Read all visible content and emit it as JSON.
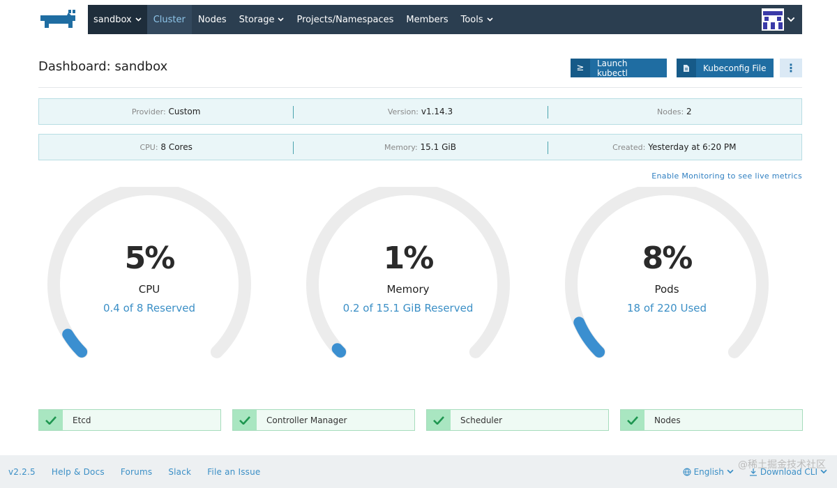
{
  "header": {
    "cluster_selector": "sandbox",
    "nav": [
      {
        "label": "Cluster",
        "active": true,
        "dropdown": false
      },
      {
        "label": "Nodes",
        "active": false,
        "dropdown": false
      },
      {
        "label": "Storage",
        "active": false,
        "dropdown": true
      },
      {
        "label": "Projects/Namespaces",
        "active": false,
        "dropdown": false
      },
      {
        "label": "Members",
        "active": false,
        "dropdown": false
      },
      {
        "label": "Tools",
        "active": false,
        "dropdown": true
      }
    ],
    "logo_icon": "rancher-cow-icon",
    "avatar_icon": "user-avatar-icon"
  },
  "page": {
    "title": "Dashboard: sandbox",
    "launch_kubectl": "Launch kubectl",
    "kubeconfig_file": "Kubeconfig File",
    "more_icon": "vertical-ellipsis-icon"
  },
  "info": {
    "row1": [
      {
        "key": "Provider:",
        "value": "Custom"
      },
      {
        "key": "Version:",
        "value": "v1.14.3"
      },
      {
        "key": "Nodes:",
        "value": "2"
      }
    ],
    "row2": [
      {
        "key": "CPU:",
        "value": "8 Cores"
      },
      {
        "key": "Memory:",
        "value": "15.1 GiB"
      },
      {
        "key": "Created:",
        "value": "Yesterday at 6:20 PM"
      }
    ]
  },
  "monitoring_link": "Enable Monitoring to see live metrics",
  "gauges": [
    {
      "pct_text": "5%",
      "fraction": 0.05,
      "label": "CPU",
      "sub": "0.4 of 8 Reserved"
    },
    {
      "pct_text": "1%",
      "fraction": 0.01,
      "label": "Memory",
      "sub": "0.2 of 15.1 GiB Reserved"
    },
    {
      "pct_text": "8%",
      "fraction": 0.08,
      "label": "Pods",
      "sub": "18 of 220 Used"
    }
  ],
  "components": [
    {
      "name": "Etcd"
    },
    {
      "name": "Controller Manager"
    },
    {
      "name": "Scheduler"
    },
    {
      "name": "Nodes"
    }
  ],
  "footer": {
    "version": "v2.2.5",
    "links": [
      "Help & Docs",
      "Forums",
      "Slack",
      "File an Issue"
    ],
    "language": "English",
    "download": "Download CLI",
    "watermark": "@稀土掘金技术社区"
  },
  "colors": {
    "nav_bg": "#2b3e50",
    "accent": "#1f6da2",
    "gauge_fill": "#3b8fd0",
    "gauge_track": "#ececec",
    "ok_green": "#27a85a"
  }
}
